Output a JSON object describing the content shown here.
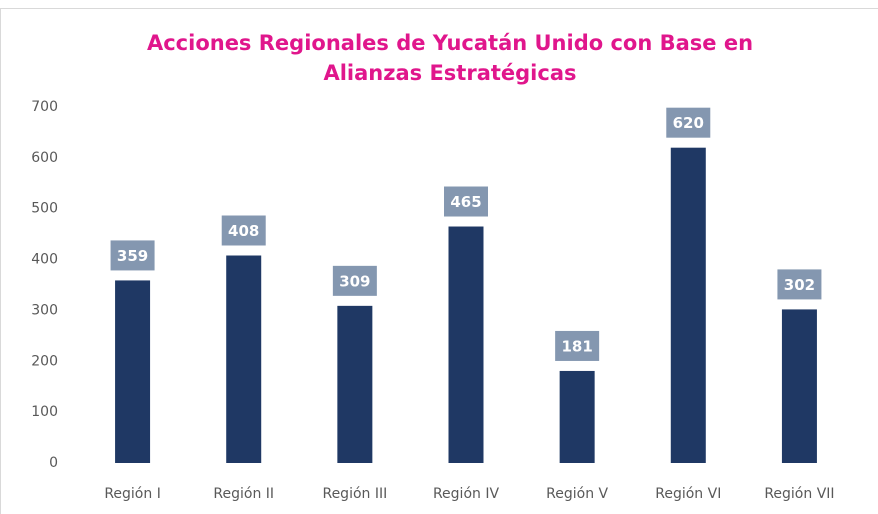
{
  "chart_data": {
    "type": "bar",
    "title": "Acciones Regionales de Yucatán Unido con Base en Alianzas Estratégicas",
    "categories": [
      "Región I",
      "Región II",
      "Región III",
      "Región IV",
      "Región V",
      "Región VI",
      "Región VII"
    ],
    "values": [
      359,
      408,
      309,
      465,
      181,
      620,
      302
    ],
    "color": "#1f3864",
    "label_color": "#8497b0",
    "title_color": "#e0168c",
    "ylim": [
      0,
      700
    ],
    "yticks": [
      0,
      100,
      200,
      300,
      400,
      500,
      600,
      700
    ],
    "grid": false
  }
}
